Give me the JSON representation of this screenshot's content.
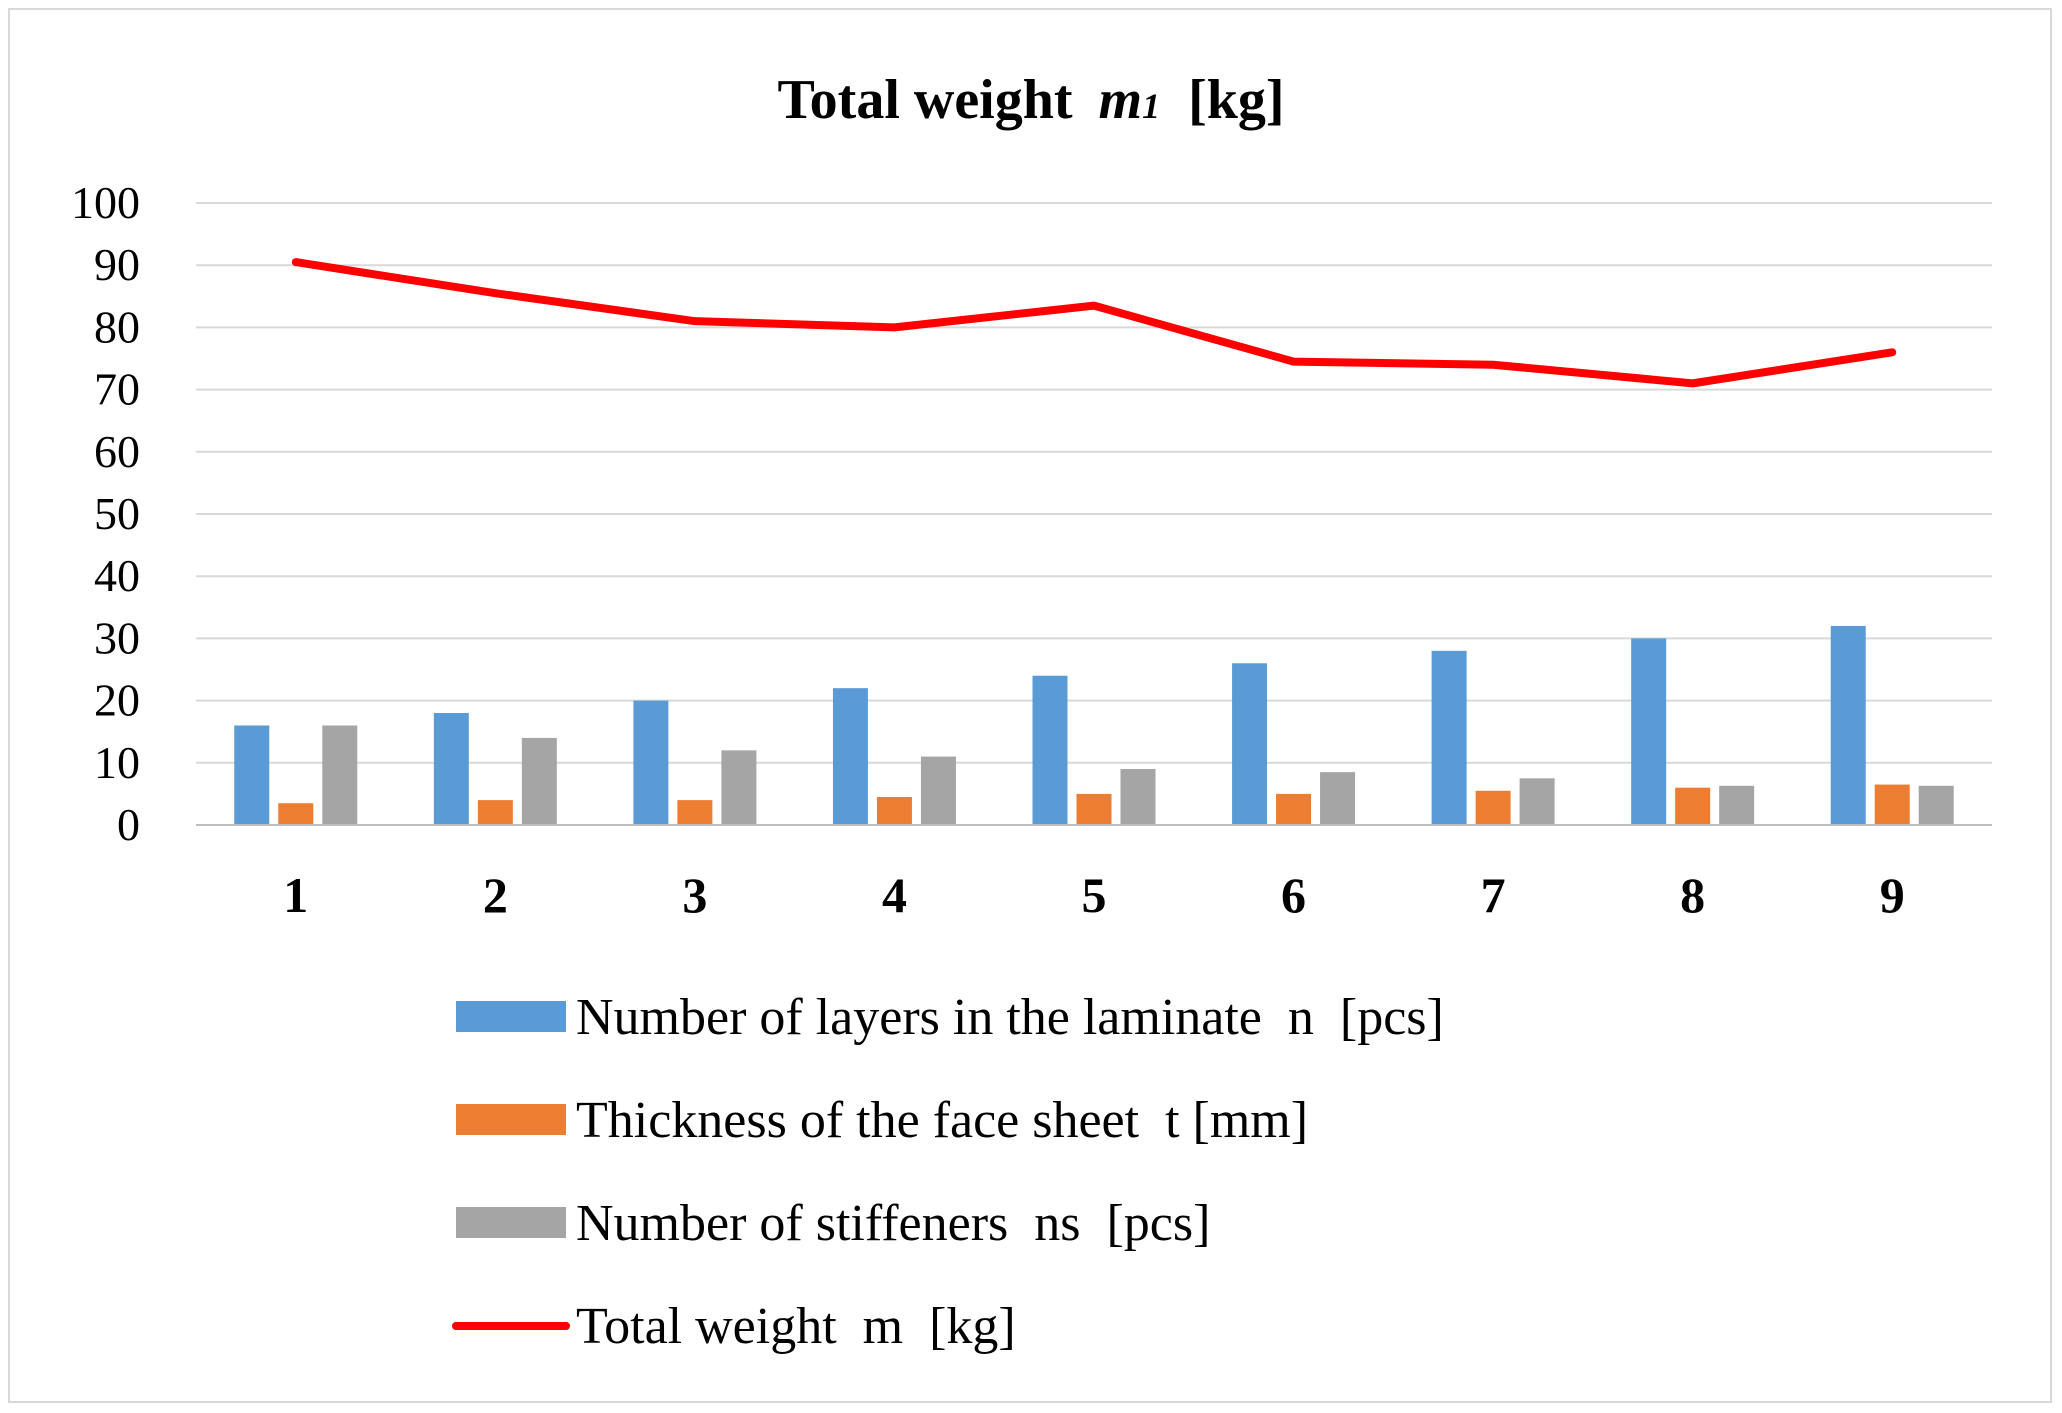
{
  "chart_data": {
    "type": "bar",
    "title": {
      "main": "Total weight",
      "symbol": "m",
      "subscript": "1",
      "unit": "[kg]"
    },
    "xlabel": "",
    "ylabel": "",
    "ylim": [
      0,
      100
    ],
    "ytick_step": 10,
    "grid": true,
    "legend_position": "bottom",
    "categories": [
      "1",
      "2",
      "3",
      "4",
      "5",
      "6",
      "7",
      "8",
      "9"
    ],
    "series": [
      {
        "name": "Number of layers in the laminate  n  [pcs]",
        "type": "bar",
        "color": "#5b9bd5",
        "values": [
          16,
          18,
          20,
          22,
          24,
          26,
          28,
          30,
          32
        ]
      },
      {
        "name": "Thickness of the face sheet  t [mm]",
        "type": "bar",
        "color": "#ed7d31",
        "values": [
          3.5,
          4,
          4,
          4.5,
          5,
          5,
          5.5,
          6,
          6.5
        ]
      },
      {
        "name": "Number of stiffeners  ns  [pcs]",
        "type": "bar",
        "color": "#a5a5a5",
        "values": [
          16,
          14,
          12,
          11,
          9,
          8.5,
          7.5,
          6.3,
          6.3
        ]
      },
      {
        "name": "Total weight  m  [kg]",
        "type": "line",
        "color": "#ff0000",
        "values": [
          90.5,
          85.5,
          81,
          80,
          83.5,
          74.5,
          74,
          71,
          76
        ]
      }
    ]
  }
}
